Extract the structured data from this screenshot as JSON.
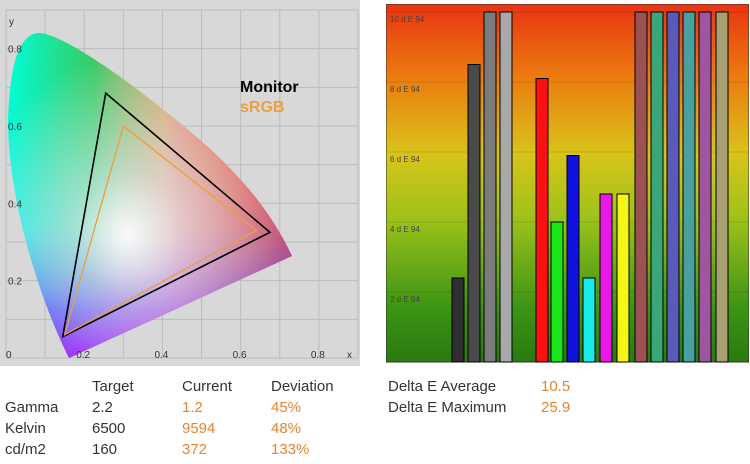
{
  "colors": {
    "plot_bg": "#d8d8d8",
    "grid": "#bdbdbd",
    "monitor_outline": "#000000",
    "srgb_outline": "#e8a040",
    "value_orange": "#e8842d",
    "text": "#333333",
    "bar_outline": "#000000"
  },
  "chart_data": [
    {
      "type": "scatter",
      "subtype": "cie-1931-chromaticity",
      "xlabel": "x",
      "ylabel": "y",
      "xlim": [
        0,
        0.9
      ],
      "ylim": [
        0,
        0.9
      ],
      "x_ticks": [
        "0",
        "0.2",
        "0.4",
        "0.6",
        "0.8"
      ],
      "y_ticks": [
        "0.2",
        "0.4",
        "0.6",
        "0.8"
      ],
      "grid": true,
      "legend_position": "top-right",
      "series": [
        {
          "name": "Monitor",
          "color": "#000000",
          "points": [
            [
              0.675,
              0.325
            ],
            [
              0.255,
              0.685
            ],
            [
              0.145,
              0.055
            ]
          ]
        },
        {
          "name": "sRGB",
          "color": "#e8a040",
          "points": [
            [
              0.64,
              0.33
            ],
            [
              0.3,
              0.6
            ],
            [
              0.15,
              0.06
            ]
          ]
        }
      ]
    },
    {
      "type": "bar",
      "subtype": "delta-e-per-patch",
      "ylim": [
        0,
        10
      ],
      "y_ticks": [
        "2 d E 94",
        "4 d E 94",
        "6 d E 94",
        "8 d E 94",
        "10 d E 94"
      ],
      "background_gradient": "red-top-to-green-bottom",
      "bars": [
        {
          "value": 2.4,
          "color": "#2e2e2e"
        },
        {
          "value": 8.5,
          "color": "#4a4a4a"
        },
        {
          "value": 10.0,
          "color": "#7b7b7b"
        },
        {
          "value": 10.0,
          "color": "#a9a9a9"
        },
        {
          "value": 8.1,
          "color": "#ff1010"
        },
        {
          "value": 4.0,
          "color": "#19e619"
        },
        {
          "value": 5.9,
          "color": "#1212dd"
        },
        {
          "value": 2.4,
          "color": "#19eaea"
        },
        {
          "value": 4.8,
          "color": "#e619e6"
        },
        {
          "value": 4.8,
          "color": "#f5f516"
        },
        {
          "value": 10.0,
          "color": "#9c5252"
        },
        {
          "value": 10.0,
          "color": "#3aa67a"
        },
        {
          "value": 10.0,
          "color": "#5a5ab8"
        },
        {
          "value": 10.0,
          "color": "#4aa0a0"
        },
        {
          "value": 10.0,
          "color": "#a055a0"
        },
        {
          "value": 10.0,
          "color": "#a8a070"
        }
      ]
    }
  ],
  "stats": {
    "headers": {
      "target": "Target",
      "current": "Current",
      "deviation": "Deviation"
    },
    "rows": [
      {
        "label": "Gamma",
        "target": "2.2",
        "current": "1.2",
        "deviation": "45%"
      },
      {
        "label": "Kelvin",
        "target": "6500",
        "current": "9594",
        "deviation": "48%"
      },
      {
        "label": "cd/m2",
        "target": "160",
        "current": "372",
        "deviation": "133%"
      }
    ]
  },
  "delta_e": {
    "average_label": "Delta E Average",
    "average_value": "10.5",
    "maximum_label": "Delta E Maximum",
    "maximum_value": "25.9"
  }
}
